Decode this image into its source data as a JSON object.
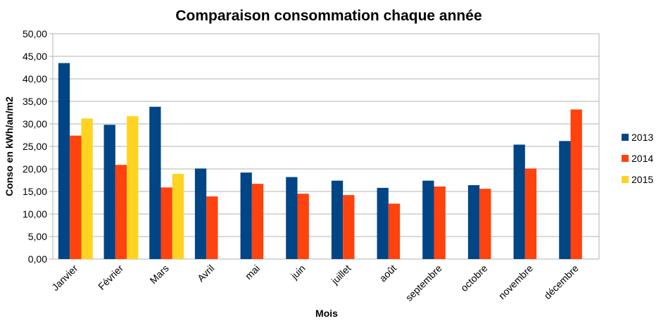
{
  "chart_data": {
    "type": "bar",
    "title": "Comparaison consommation chaque année",
    "xlabel": "Mois",
    "ylabel": "Conso en kWh/an/m2",
    "ylim": [
      0,
      50
    ],
    "ytick_step": 5,
    "ytick_labels": [
      "0,00",
      "5,00",
      "10,00",
      "15,00",
      "20,00",
      "25,00",
      "30,00",
      "35,00",
      "40,00",
      "45,00",
      "50,00"
    ],
    "categories": [
      "Janvier",
      "Février",
      "Mars",
      "Avril",
      "mai",
      "juin",
      "juillet",
      "août",
      "septembre",
      "octobre",
      "novembre",
      "décembre"
    ],
    "series": [
      {
        "name": "2013",
        "color": "#004586",
        "values": [
          43.5,
          29.8,
          33.8,
          20.1,
          19.2,
          18.2,
          17.4,
          15.8,
          17.4,
          16.4,
          25.4,
          26.2
        ]
      },
      {
        "name": "2014",
        "color": "#ff420e",
        "values": [
          27.4,
          20.9,
          15.9,
          13.9,
          16.7,
          14.5,
          14.2,
          12.3,
          16.1,
          15.6,
          20.1,
          33.2
        ]
      },
      {
        "name": "2015",
        "color": "#ffd320",
        "values": [
          31.2,
          31.7,
          18.9,
          null,
          null,
          null,
          null,
          null,
          null,
          null,
          null,
          null
        ]
      }
    ],
    "grid": true,
    "legend_position": "right"
  }
}
